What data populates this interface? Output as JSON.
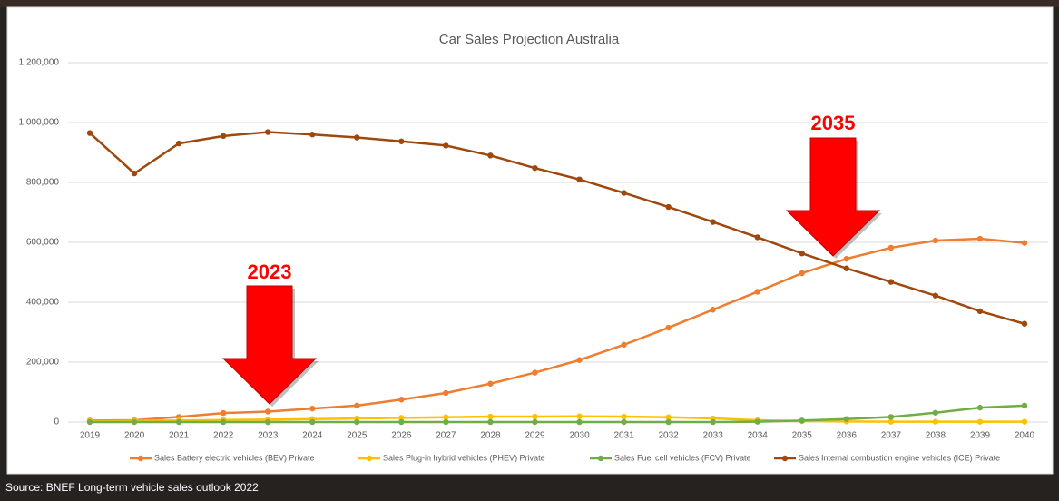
{
  "chart_data": {
    "type": "line",
    "title": "Car Sales Projection Australia",
    "categories": [
      "2019",
      "2020",
      "2021",
      "2022",
      "2023",
      "2024",
      "2025",
      "2026",
      "2027",
      "2028",
      "2029",
      "2030",
      "2031",
      "2032",
      "2033",
      "2034",
      "2035",
      "2036",
      "2037",
      "2038",
      "2039",
      "2040"
    ],
    "series": [
      {
        "name": "Sales Battery electric vehicles (BEV) Private",
        "color": "#ed7d31",
        "values": [
          5000,
          6000,
          17000,
          30000,
          35000,
          45000,
          55000,
          75000,
          97000,
          128000,
          165000,
          207000,
          258000,
          315000,
          375000,
          435000,
          497000,
          545000,
          582000,
          606000,
          612000,
          598000
        ]
      },
      {
        "name": "Sales Plug-in hybrid vehicles (PHEV) Private",
        "color": "#ffc000",
        "values": [
          3000,
          4000,
          5000,
          7000,
          8000,
          10000,
          12000,
          14000,
          16000,
          18000,
          18000,
          19000,
          18000,
          16000,
          12000,
          6000,
          3000,
          2000,
          1000,
          1000,
          1000,
          1000
        ]
      },
      {
        "name": "Sales Fuel cell vehicles (FCV) Private",
        "color": "#70ad47",
        "values": [
          0,
          0,
          0,
          0,
          0,
          0,
          0,
          0,
          0,
          0,
          0,
          0,
          0,
          0,
          0,
          1000,
          5000,
          10000,
          17000,
          31000,
          48000,
          55000
        ]
      },
      {
        "name": "Sales Internal combustion engine vehicles (ICE) Private",
        "color": "#9e480e",
        "values": [
          965000,
          830000,
          930000,
          955000,
          968000,
          960000,
          950000,
          937000,
          923000,
          890000,
          848000,
          810000,
          765000,
          718000,
          668000,
          617000,
          563000,
          513000,
          468000,
          422000,
          370000,
          328000
        ]
      }
    ],
    "ylim": [
      0,
      1200000
    ],
    "yticks": [
      0,
      {
        "value": 200000,
        "label": "200,000"
      },
      {
        "value": 400000,
        "label": "400,000"
      },
      {
        "value": 600000,
        "label": "600,000"
      },
      {
        "value": 800000,
        "label": "800,000"
      },
      {
        "value": 1000000,
        "label": "1,000,000"
      },
      {
        "value": 1200000,
        "label": "1,200,000"
      }
    ],
    "grid": true,
    "legend": "bottom",
    "annotations": [
      "2023",
      "2035"
    ],
    "annotation_color": "#ff0000",
    "source": "Source: BNEF Long-term vehicle sales outlook 2022"
  }
}
